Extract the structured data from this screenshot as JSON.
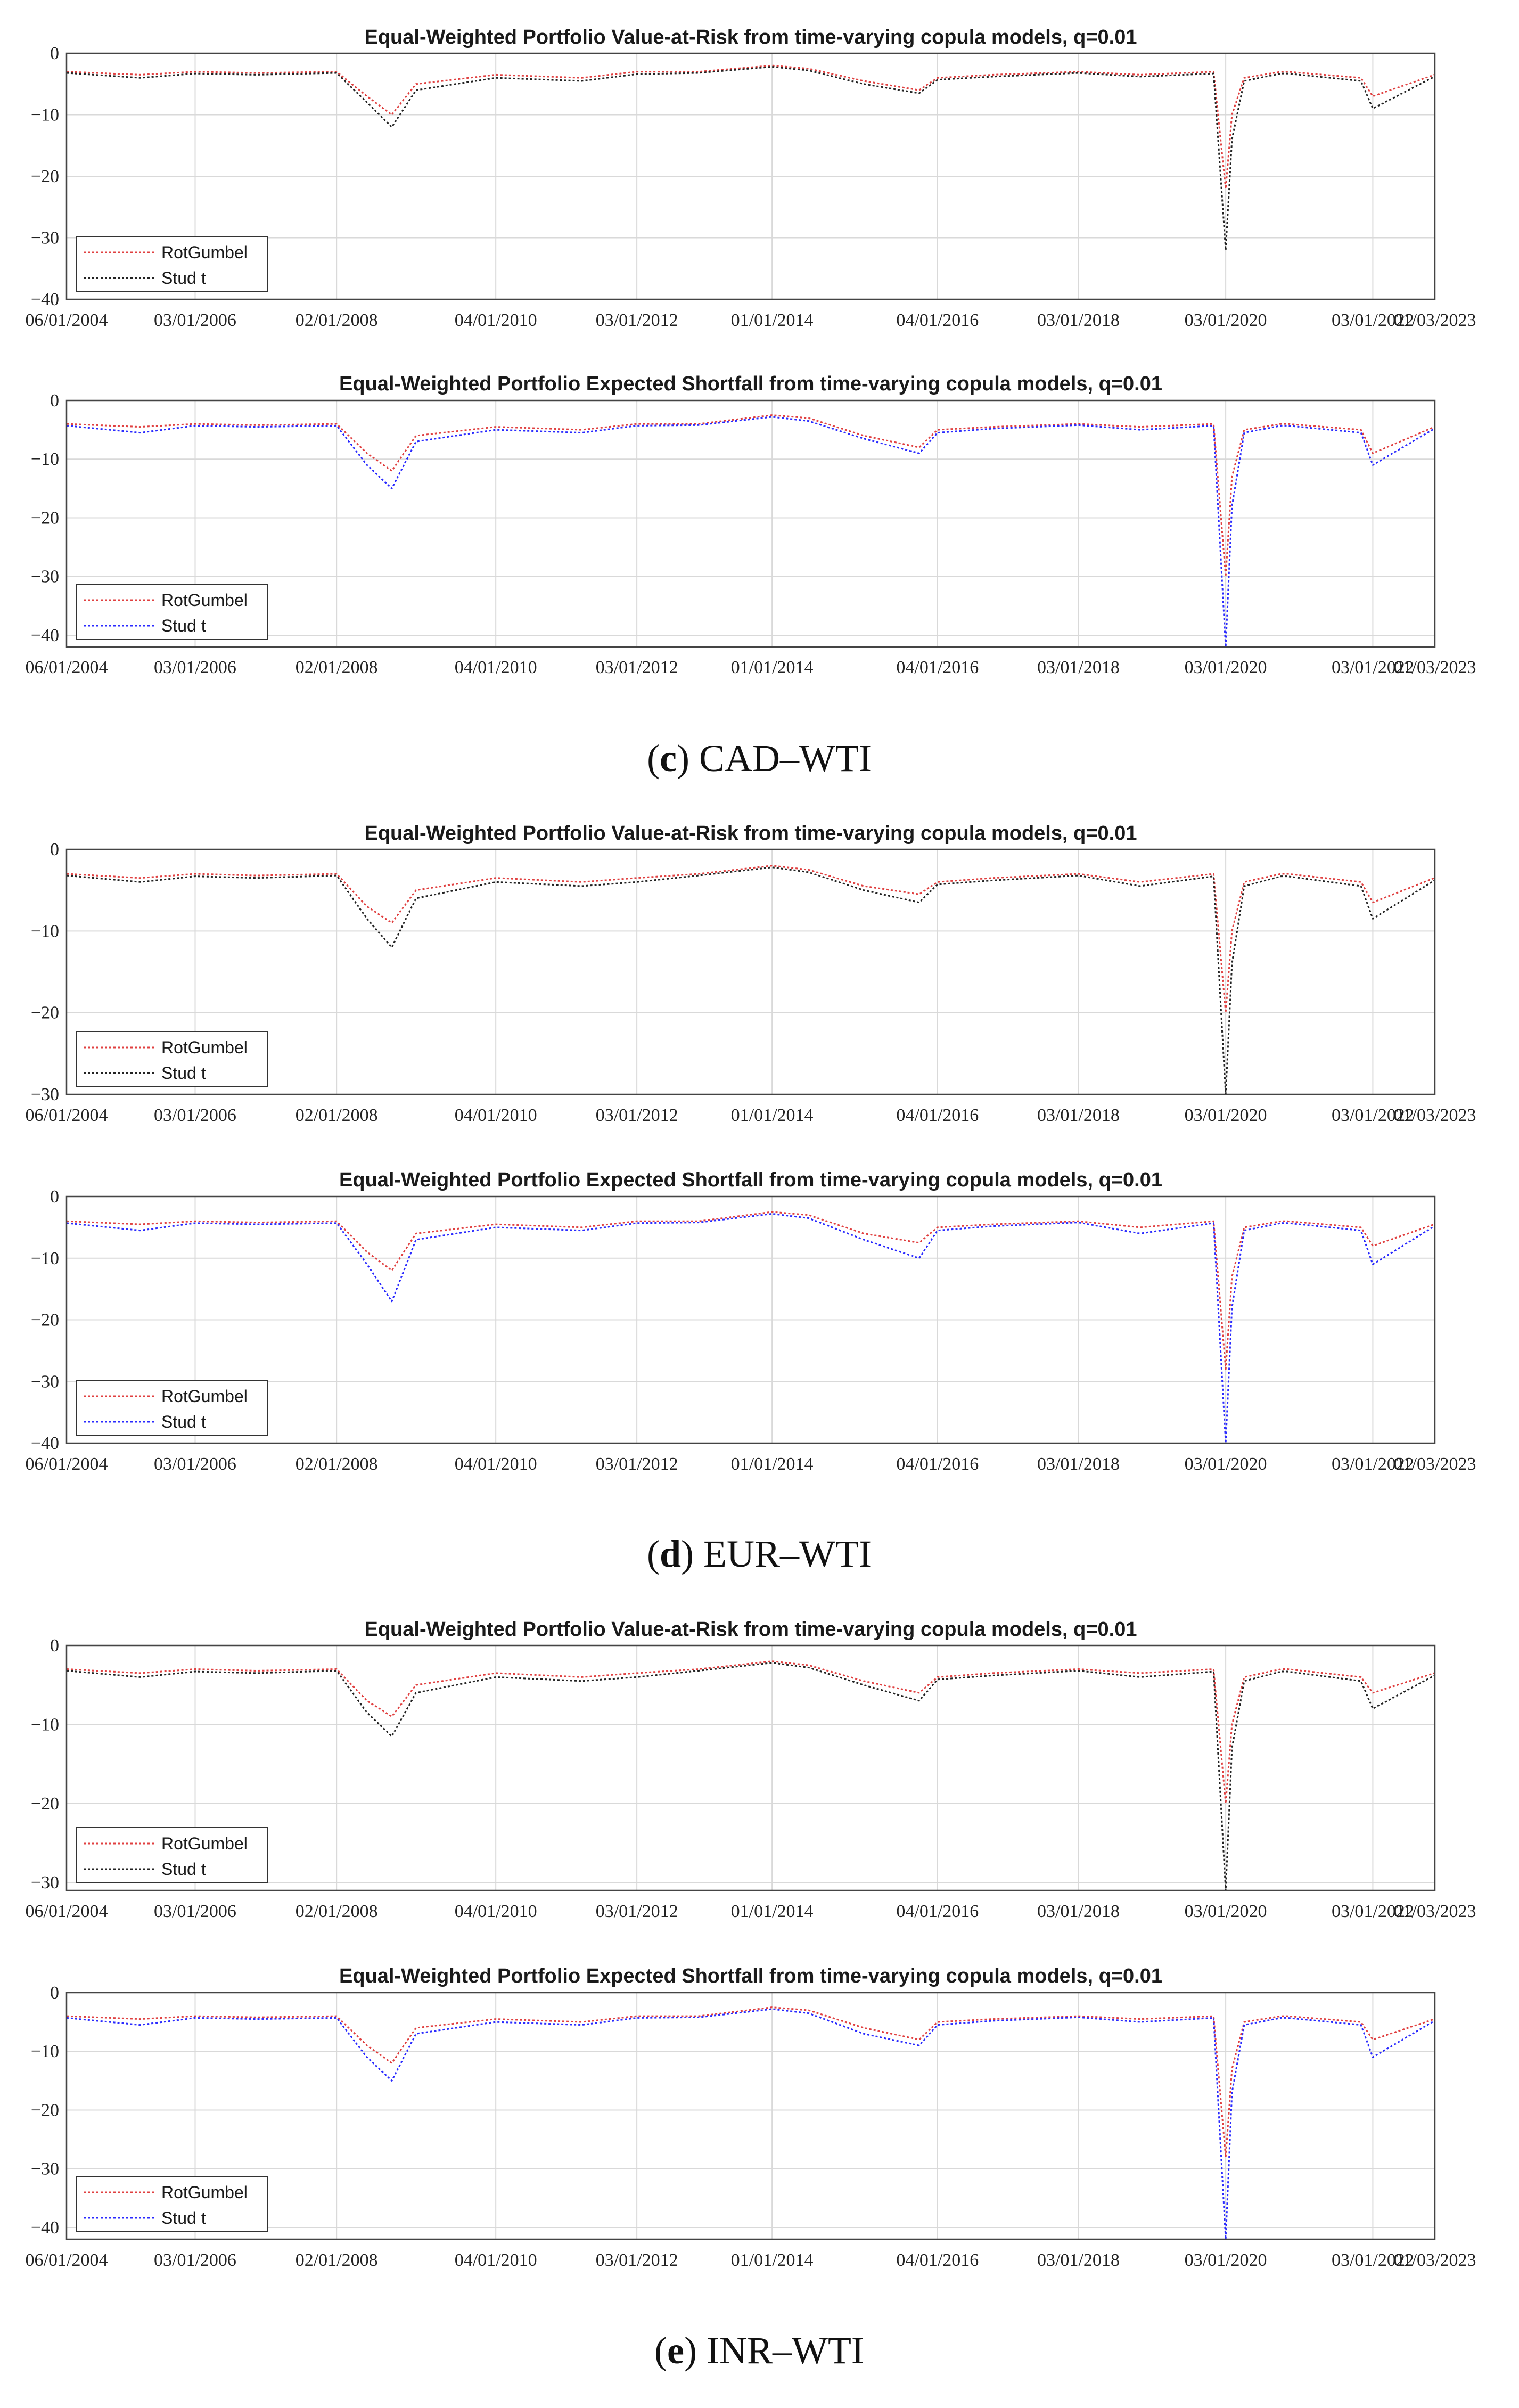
{
  "colors": {
    "rotgumbel": "#e04040",
    "studt_var": "#222222",
    "studt_es": "#2a2aff",
    "grid": "#d9d9d9",
    "axis": "#444444"
  },
  "date_ticks": [
    "06/01/2004",
    "03/01/2006",
    "02/01/2008",
    "04/01/2010",
    "03/01/2012",
    "01/01/2014",
    "04/01/2016",
    "03/01/2018",
    "03/01/2020",
    "03/01/2022",
    "01/03/2023"
  ],
  "captions": [
    {
      "letter": "c",
      "label": "CAD–WTI"
    },
    {
      "letter": "d",
      "label": "EUR–WTI"
    },
    {
      "letter": "e",
      "label": "INR–WTI"
    }
  ],
  "chart_data": [
    {
      "type": "line",
      "title": "Equal-Weighted Portfolio Value-at-Risk from time-varying copula models, q=0.01",
      "ylim": [
        -40,
        0
      ],
      "yticks": [
        0,
        -10,
        -20,
        -30,
        -40
      ],
      "grid": true,
      "legend_position": "bottom-left",
      "x": [
        "06/01/2004",
        "06/01/2005",
        "03/01/2006",
        "01/01/2007",
        "02/01/2008",
        "07/01/2008",
        "11/01/2008",
        "03/01/2009",
        "04/01/2010",
        "06/01/2011",
        "03/01/2012",
        "01/01/2013",
        "01/01/2014",
        "07/01/2014",
        "04/01/2015",
        "01/01/2016",
        "04/01/2016",
        "01/01/2017",
        "03/01/2018",
        "01/01/2019",
        "01/01/2020",
        "03/01/2020",
        "04/01/2020",
        "06/01/2020",
        "12/01/2020",
        "01/01/2021",
        "01/01/2022",
        "03/01/2022",
        "01/01/2023"
      ],
      "series": [
        {
          "name": "RotGumbel",
          "values": [
            -3,
            -3.5,
            -3,
            -3.2,
            -3,
            -7,
            -10,
            -5,
            -3.5,
            -4,
            -3,
            -3,
            -2,
            -2.5,
            -4.5,
            -6,
            -4,
            -3.5,
            -3,
            -3.5,
            -3,
            -22,
            -10,
            -4,
            -3,
            -3,
            -4,
            -7,
            -3.5
          ]
        },
        {
          "name": "Stud t",
          "values": [
            -3.2,
            -4,
            -3.3,
            -3.5,
            -3.2,
            -8,
            -12,
            -6,
            -4,
            -4.5,
            -3.4,
            -3.2,
            -2.2,
            -2.8,
            -5,
            -6.5,
            -4.3,
            -3.8,
            -3.2,
            -3.8,
            -3.3,
            -32,
            -14,
            -4.5,
            -3.3,
            -3.3,
            -4.5,
            -9,
            -3.8
          ]
        }
      ]
    },
    {
      "type": "line",
      "title": "Equal-Weighted Portfolio Expected Shortfall from time-varying copula models, q=0.01",
      "ylim": [
        -42,
        0
      ],
      "yticks": [
        0,
        -10,
        -20,
        -30,
        -40
      ],
      "grid": true,
      "legend_position": "bottom-left",
      "x": [
        "06/01/2004",
        "06/01/2005",
        "03/01/2006",
        "01/01/2007",
        "02/01/2008",
        "07/01/2008",
        "11/01/2008",
        "03/01/2009",
        "04/01/2010",
        "06/01/2011",
        "03/01/2012",
        "01/01/2013",
        "01/01/2014",
        "07/01/2014",
        "04/01/2015",
        "01/01/2016",
        "04/01/2016",
        "01/01/2017",
        "03/01/2018",
        "01/01/2019",
        "01/01/2020",
        "03/01/2020",
        "04/01/2020",
        "06/01/2020",
        "12/01/2020",
        "01/01/2021",
        "01/01/2022",
        "03/01/2022",
        "01/01/2023"
      ],
      "series": [
        {
          "name": "RotGumbel",
          "values": [
            -4,
            -4.5,
            -4,
            -4.2,
            -4,
            -9,
            -12,
            -6,
            -4.5,
            -5,
            -4,
            -4,
            -2.5,
            -3,
            -6,
            -8,
            -5,
            -4.5,
            -4,
            -4.5,
            -4,
            -30,
            -13,
            -5,
            -4,
            -4,
            -5,
            -9,
            -4.5
          ]
        },
        {
          "name": "Stud t",
          "values": [
            -4.3,
            -5.5,
            -4.3,
            -4.5,
            -4.3,
            -11,
            -15,
            -7,
            -5,
            -5.5,
            -4.3,
            -4.2,
            -2.8,
            -3.5,
            -6.5,
            -9,
            -5.5,
            -4.8,
            -4.2,
            -5,
            -4.3,
            -42,
            -18,
            -5.5,
            -4.3,
            -4.3,
            -5.5,
            -11,
            -4.8
          ]
        }
      ]
    },
    {
      "type": "line",
      "title": "Equal-Weighted Portfolio Value-at-Risk from time-varying copula models, q=0.01",
      "ylim": [
        -30,
        0
      ],
      "yticks": [
        0,
        -10,
        -20,
        -30
      ],
      "grid": true,
      "legend_position": "bottom-left",
      "x": [
        "06/01/2004",
        "06/01/2005",
        "03/01/2006",
        "01/01/2007",
        "02/01/2008",
        "07/01/2008",
        "11/01/2008",
        "03/01/2009",
        "04/01/2010",
        "06/01/2011",
        "03/01/2012",
        "01/01/2013",
        "01/01/2014",
        "07/01/2014",
        "04/01/2015",
        "01/01/2016",
        "04/01/2016",
        "01/01/2017",
        "03/01/2018",
        "01/01/2019",
        "01/01/2020",
        "03/01/2020",
        "04/01/2020",
        "06/01/2020",
        "12/01/2020",
        "01/01/2021",
        "01/01/2022",
        "03/01/2022",
        "01/01/2023"
      ],
      "series": [
        {
          "name": "RotGumbel",
          "values": [
            -3,
            -3.5,
            -3,
            -3.2,
            -3,
            -7,
            -9,
            -5,
            -3.5,
            -4,
            -3.5,
            -3,
            -2,
            -2.5,
            -4.5,
            -5.5,
            -4,
            -3.5,
            -3,
            -4,
            -3,
            -20,
            -10,
            -4,
            -3,
            -3,
            -4,
            -6.5,
            -3.5
          ]
        },
        {
          "name": "Stud t",
          "values": [
            -3.2,
            -4,
            -3.3,
            -3.5,
            -3.2,
            -8.5,
            -12,
            -6,
            -4,
            -4.5,
            -4,
            -3.2,
            -2.2,
            -2.8,
            -5,
            -6.5,
            -4.3,
            -3.8,
            -3.2,
            -4.5,
            -3.3,
            -30,
            -14,
            -4.5,
            -3.3,
            -3.3,
            -4.5,
            -8.5,
            -3.8
          ]
        }
      ]
    },
    {
      "type": "line",
      "title": "Equal-Weighted Portfolio Expected Shortfall from time-varying copula models, q=0.01",
      "ylim": [
        -40,
        0
      ],
      "yticks": [
        0,
        -10,
        -20,
        -30,
        -40
      ],
      "grid": true,
      "legend_position": "bottom-left",
      "x": [
        "06/01/2004",
        "06/01/2005",
        "03/01/2006",
        "01/01/2007",
        "02/01/2008",
        "07/01/2008",
        "11/01/2008",
        "03/01/2009",
        "04/01/2010",
        "06/01/2011",
        "03/01/2012",
        "01/01/2013",
        "01/01/2014",
        "07/01/2014",
        "04/01/2015",
        "01/01/2016",
        "04/01/2016",
        "01/01/2017",
        "03/01/2018",
        "01/01/2019",
        "01/01/2020",
        "03/01/2020",
        "04/01/2020",
        "06/01/2020",
        "12/01/2020",
        "01/01/2021",
        "01/01/2022",
        "03/01/2022",
        "01/01/2023"
      ],
      "series": [
        {
          "name": "RotGumbel",
          "values": [
            -4,
            -4.5,
            -4,
            -4.2,
            -4,
            -9,
            -12,
            -6,
            -4.5,
            -5,
            -4,
            -4,
            -2.5,
            -3,
            -6,
            -7.5,
            -5,
            -4.5,
            -4,
            -5,
            -4,
            -28,
            -13,
            -5,
            -4,
            -4,
            -5,
            -8,
            -4.5
          ]
        },
        {
          "name": "Stud t",
          "values": [
            -4.3,
            -5.5,
            -4.3,
            -4.5,
            -4.3,
            -11,
            -17,
            -7,
            -5,
            -5.5,
            -4.3,
            -4.2,
            -2.8,
            -3.5,
            -7,
            -10,
            -5.5,
            -4.8,
            -4.2,
            -6,
            -4.3,
            -40,
            -18,
            -5.5,
            -4.3,
            -4.3,
            -5.5,
            -11,
            -4.8
          ]
        }
      ]
    },
    {
      "type": "line",
      "title": "Equal-Weighted Portfolio Value-at-Risk from time-varying copula models, q=0.01",
      "ylim": [
        -31,
        0
      ],
      "yticks": [
        0,
        -10,
        -20,
        -30
      ],
      "grid": true,
      "legend_position": "bottom-left",
      "x": [
        "06/01/2004",
        "06/01/2005",
        "03/01/2006",
        "01/01/2007",
        "02/01/2008",
        "07/01/2008",
        "11/01/2008",
        "03/01/2009",
        "04/01/2010",
        "06/01/2011",
        "03/01/2012",
        "01/01/2013",
        "01/01/2014",
        "07/01/2014",
        "04/01/2015",
        "01/01/2016",
        "04/01/2016",
        "01/01/2017",
        "03/01/2018",
        "01/01/2019",
        "01/01/2020",
        "03/01/2020",
        "04/01/2020",
        "06/01/2020",
        "12/01/2020",
        "01/01/2021",
        "01/01/2022",
        "03/01/2022",
        "01/01/2023"
      ],
      "series": [
        {
          "name": "RotGumbel",
          "values": [
            -3,
            -3.5,
            -3,
            -3.2,
            -3,
            -7,
            -9,
            -5,
            -3.5,
            -4,
            -3.5,
            -3,
            -2,
            -2.5,
            -4.5,
            -6,
            -4,
            -3.5,
            -3,
            -3.5,
            -3,
            -20,
            -10,
            -4,
            -3,
            -3,
            -4,
            -6,
            -3.5
          ]
        },
        {
          "name": "Stud t",
          "values": [
            -3.2,
            -4,
            -3.3,
            -3.5,
            -3.2,
            -8.5,
            -11.5,
            -6,
            -4,
            -4.5,
            -4,
            -3.2,
            -2.2,
            -2.8,
            -5,
            -7,
            -4.3,
            -3.8,
            -3.2,
            -4,
            -3.3,
            -31,
            -13,
            -4.5,
            -3.3,
            -3.3,
            -4.5,
            -8,
            -3.8
          ]
        }
      ]
    },
    {
      "type": "line",
      "title": "Equal-Weighted Portfolio Expected Shortfall from time-varying copula models, q=0.01",
      "ylim": [
        -42,
        0
      ],
      "yticks": [
        0,
        -10,
        -20,
        -30,
        -40
      ],
      "grid": true,
      "legend_position": "bottom-left",
      "x": [
        "06/01/2004",
        "06/01/2005",
        "03/01/2006",
        "01/01/2007",
        "02/01/2008",
        "07/01/2008",
        "11/01/2008",
        "03/01/2009",
        "04/01/2010",
        "06/01/2011",
        "03/01/2012",
        "01/01/2013",
        "01/01/2014",
        "07/01/2014",
        "04/01/2015",
        "01/01/2016",
        "04/01/2016",
        "01/01/2017",
        "03/01/2018",
        "01/01/2019",
        "01/01/2020",
        "03/01/2020",
        "04/01/2020",
        "06/01/2020",
        "12/01/2020",
        "01/01/2021",
        "01/01/2022",
        "03/01/2022",
        "01/01/2023"
      ],
      "series": [
        {
          "name": "RotGumbel",
          "values": [
            -4,
            -4.5,
            -4,
            -4.2,
            -4,
            -9,
            -12,
            -6,
            -4.5,
            -5,
            -4,
            -4,
            -2.5,
            -3,
            -6,
            -8,
            -5,
            -4.5,
            -4,
            -4.5,
            -4,
            -28,
            -13,
            -5,
            -4,
            -4,
            -5,
            -8,
            -4.5
          ]
        },
        {
          "name": "Stud t",
          "values": [
            -4.3,
            -5.5,
            -4.3,
            -4.5,
            -4.3,
            -11,
            -15,
            -7,
            -5,
            -5.5,
            -4.3,
            -4.2,
            -2.8,
            -3.5,
            -7,
            -9,
            -5.5,
            -4.8,
            -4.2,
            -5,
            -4.3,
            -42,
            -17,
            -5.5,
            -4.3,
            -4.3,
            -5.5,
            -11,
            -4.8
          ]
        }
      ]
    }
  ]
}
